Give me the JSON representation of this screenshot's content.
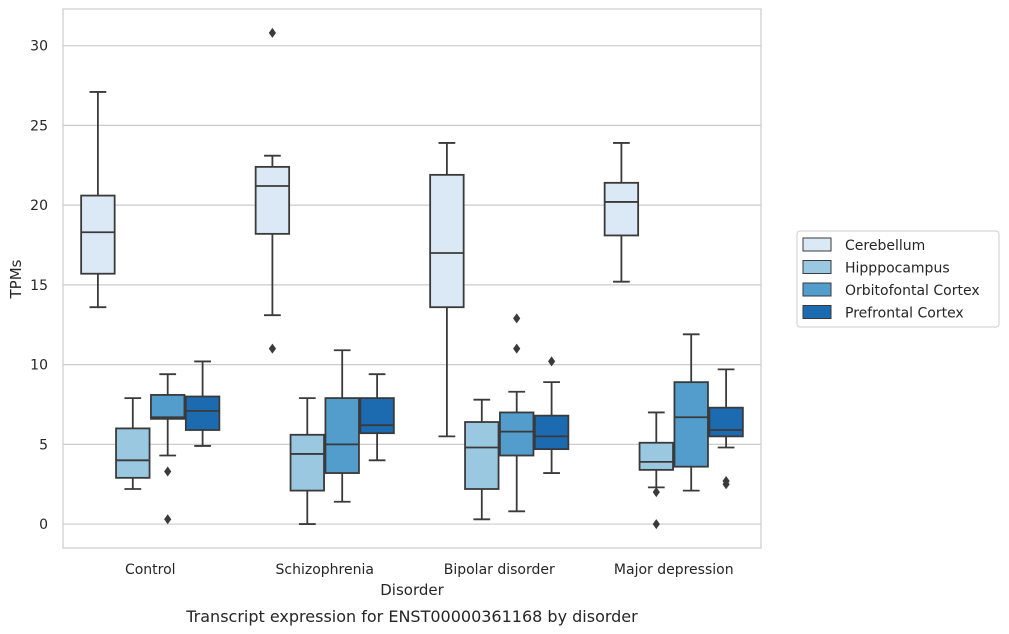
{
  "caption": "Transcript expression for ENST00000361168 by disorder",
  "chart_data": {
    "type": "box",
    "title": "",
    "xlabel": "Disorder",
    "ylabel": "TPMs",
    "ylim": [
      -1.5,
      32.3
    ],
    "yticks": [
      0,
      5,
      10,
      15,
      20,
      25,
      30
    ],
    "grid": "horizontal",
    "legend_placement": "right",
    "categories": [
      "Control",
      "Schizophrenia",
      "Bipolar disorder",
      "Major depression"
    ],
    "series": [
      {
        "name": "Cerebellum",
        "color": "#dbe9f6",
        "boxes": [
          {
            "whislo": 13.6,
            "q1": 15.7,
            "med": 18.3,
            "q3": 20.6,
            "whishi": 27.1,
            "fliers": []
          },
          {
            "whislo": 13.1,
            "q1": 18.2,
            "med": 21.2,
            "q3": 22.4,
            "whishi": 23.1,
            "fliers": [
              30.8,
              11.0
            ]
          },
          {
            "whislo": 5.5,
            "q1": 13.6,
            "med": 17.0,
            "q3": 21.9,
            "whishi": 23.9,
            "fliers": []
          },
          {
            "whislo": 15.2,
            "q1": 18.1,
            "med": 20.2,
            "q3": 21.4,
            "whishi": 23.9,
            "fliers": []
          }
        ]
      },
      {
        "name": "Hipppocampus",
        "color": "#9ac8e0",
        "boxes": [
          {
            "whislo": 2.2,
            "q1": 2.9,
            "med": 4.0,
            "q3": 6.0,
            "whishi": 7.9,
            "fliers": []
          },
          {
            "whislo": 0.0,
            "q1": 2.1,
            "med": 4.4,
            "q3": 5.6,
            "whishi": 7.9,
            "fliers": []
          },
          {
            "whislo": 0.3,
            "q1": 2.2,
            "med": 4.8,
            "q3": 6.4,
            "whishi": 7.8,
            "fliers": []
          },
          {
            "whislo": 2.3,
            "q1": 3.4,
            "med": 3.9,
            "q3": 5.1,
            "whishi": 7.0,
            "fliers": [
              2.0,
              0.0
            ]
          }
        ]
      },
      {
        "name": "Orbitofontal Cortex",
        "color": "#529dcc",
        "boxes": [
          {
            "whislo": 4.3,
            "q1": 6.6,
            "med": 6.7,
            "q3": 8.1,
            "whishi": 9.4,
            "fliers": [
              3.3,
              0.3
            ]
          },
          {
            "whislo": 1.4,
            "q1": 3.2,
            "med": 5.0,
            "q3": 7.9,
            "whishi": 10.9,
            "fliers": []
          },
          {
            "whislo": 0.8,
            "q1": 4.3,
            "med": 5.8,
            "q3": 7.0,
            "whishi": 8.3,
            "fliers": [
              12.9,
              11.0
            ]
          },
          {
            "whislo": 2.1,
            "q1": 3.6,
            "med": 6.7,
            "q3": 8.9,
            "whishi": 11.9,
            "fliers": []
          }
        ]
      },
      {
        "name": "Prefrontal Cortex",
        "color": "#1c6aaf",
        "boxes": [
          {
            "whislo": 4.9,
            "q1": 5.9,
            "med": 7.1,
            "q3": 8.0,
            "whishi": 10.2,
            "fliers": []
          },
          {
            "whislo": 4.0,
            "q1": 5.7,
            "med": 6.2,
            "q3": 7.9,
            "whishi": 9.4,
            "fliers": []
          },
          {
            "whislo": 3.2,
            "q1": 4.7,
            "med": 5.5,
            "q3": 6.8,
            "whishi": 8.9,
            "fliers": [
              10.2
            ]
          },
          {
            "whislo": 4.8,
            "q1": 5.5,
            "med": 5.9,
            "q3": 7.3,
            "whishi": 9.7,
            "fliers": [
              2.7,
              2.5
            ]
          }
        ]
      }
    ]
  }
}
